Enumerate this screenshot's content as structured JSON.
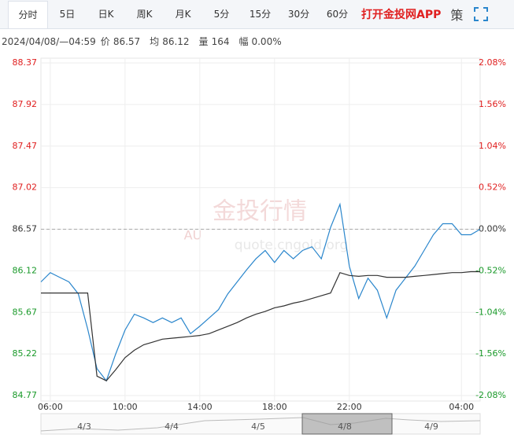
{
  "toolbar": {
    "tabs": [
      "分时",
      "5日",
      "日K",
      "周K",
      "月K",
      "5分",
      "15分",
      "30分",
      "60分"
    ],
    "app": "打开金投网APP",
    "icon": "策"
  },
  "info": {
    "time": "2024/04/08/—04:59",
    "fields": [
      {
        "label": "价",
        "value": "86.57"
      },
      {
        "label": "均",
        "value": "86.12"
      },
      {
        "label": "量",
        "value": "164"
      },
      {
        "label": "幅",
        "value": "0.00%"
      }
    ]
  },
  "watermark": {
    "logo": "AU",
    "title": "金投行情",
    "url": "quote.cngold.org"
  },
  "navigator": {
    "labels": [
      "4/3",
      "4/4",
      "4/5",
      "4/8",
      "4/9"
    ]
  },
  "chart_data": {
    "type": "line",
    "x": [
      "05:30",
      "06:00",
      "06:30",
      "07:00",
      "07:30",
      "08:00",
      "08:30",
      "09:00",
      "09:30",
      "10:00",
      "10:30",
      "11:00",
      "11:30",
      "12:00",
      "12:30",
      "13:00",
      "13:30",
      "14:00",
      "14:30",
      "15:00",
      "15:30",
      "16:00",
      "16:30",
      "17:00",
      "17:30",
      "18:00",
      "18:30",
      "19:00",
      "19:30",
      "20:00",
      "20:30",
      "21:00",
      "21:30",
      "22:00",
      "22:30",
      "23:00",
      "23:30",
      "00:00",
      "00:30",
      "01:00",
      "01:30",
      "02:00",
      "02:30",
      "03:00",
      "03:30",
      "04:00",
      "04:30",
      "05:00"
    ],
    "series": [
      {
        "color": "#2a86cc",
        "values": [
          86.0,
          86.1,
          86.05,
          86.0,
          85.87,
          85.49,
          85.06,
          84.93,
          85.22,
          85.48,
          85.65,
          85.61,
          85.56,
          85.61,
          85.56,
          85.61,
          85.44,
          85.52,
          85.61,
          85.7,
          85.87,
          86.0,
          86.13,
          86.25,
          86.34,
          86.21,
          86.34,
          86.25,
          86.34,
          86.38,
          86.25,
          86.59,
          86.84,
          86.17,
          85.82,
          86.04,
          85.91,
          85.61,
          85.91,
          86.04,
          86.17,
          86.34,
          86.51,
          86.63,
          86.63,
          86.51,
          86.51,
          86.57
        ]
      },
      {
        "color": "#333333",
        "values": [
          85.88,
          85.88,
          85.88,
          85.88,
          85.88,
          85.88,
          84.98,
          84.93,
          85.05,
          85.18,
          85.26,
          85.32,
          85.35,
          85.38,
          85.39,
          85.4,
          85.41,
          85.42,
          85.44,
          85.48,
          85.52,
          85.56,
          85.61,
          85.65,
          85.68,
          85.72,
          85.74,
          85.77,
          85.79,
          85.82,
          85.85,
          85.88,
          86.1,
          86.07,
          86.06,
          86.07,
          86.07,
          86.05,
          86.05,
          86.05,
          86.06,
          86.07,
          86.08,
          86.09,
          86.1,
          86.1,
          86.11,
          86.11
        ]
      }
    ],
    "reference": 86.57,
    "ylim": [
      84.77,
      88.37
    ],
    "yticks": [
      88.37,
      87.92,
      87.47,
      87.02,
      86.57,
      86.12,
      85.67,
      85.22,
      84.77
    ],
    "y2lim": [
      -2.08,
      2.08
    ],
    "y2ticks": [
      {
        "value": 2.08,
        "label": "2.08%"
      },
      {
        "value": 1.56,
        "label": "1.56%"
      },
      {
        "value": 1.04,
        "label": "1.04%"
      },
      {
        "value": 0.52,
        "label": "0.52%"
      },
      {
        "value": 0,
        "label": "0.00%"
      },
      {
        "value": -0.52,
        "label": "-0.52%"
      },
      {
        "value": -1.04,
        "label": "-1.04%"
      },
      {
        "value": -1.56,
        "label": "-1.56%"
      },
      {
        "value": -2.08,
        "label": "-2.08%"
      }
    ],
    "xticks": [
      "06:00",
      "10:00",
      "14:00",
      "18:00",
      "22:00",
      "04:00"
    ],
    "up_color": "#e02020",
    "down_color": "#1a9a2a",
    "grid": true
  }
}
